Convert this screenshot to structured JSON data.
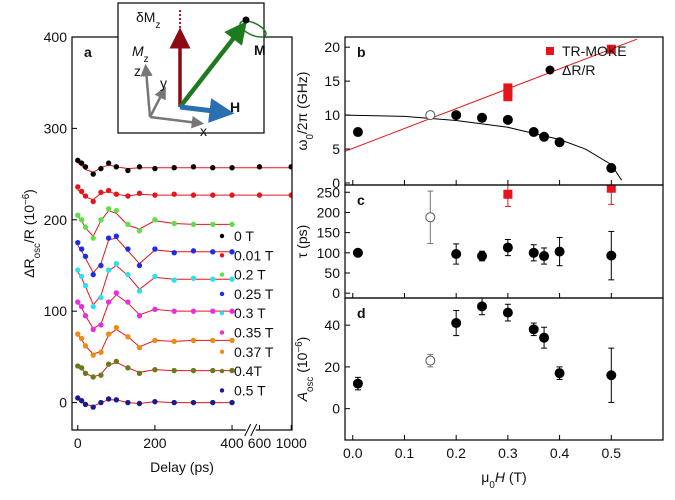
{
  "chart_data": [
    {
      "type": "scatter",
      "panel": "a",
      "xlim": [
        -15,
        1010
      ],
      "xbreak": [
        430,
        580
      ],
      "ylim": [
        -30,
        400
      ],
      "xticks": [
        0,
        200,
        400,
        600,
        1000
      ],
      "yticks": [
        0,
        100,
        200,
        300,
        400
      ],
      "xlabel": [
        {
          "text": "Delay (ps)"
        }
      ],
      "ylabel": [
        {
          "text": "ΔR"
        },
        {
          "text": "osc",
          "shift": "sub"
        },
        {
          "text": "/R (10"
        },
        {
          "text": "−6",
          "shift": "super"
        },
        {
          "text": ")"
        }
      ],
      "legend": "right",
      "fit_color": "#e8141b",
      "x": [
        0,
        10,
        20,
        40,
        60,
        80,
        100,
        130,
        160,
        200,
        250,
        300,
        350,
        400,
        600,
        1000
      ],
      "series": [
        {
          "name": "0 T",
          "color": "#000000",
          "values": [
            265,
            262,
            258,
            250,
            256,
            262,
            258,
            254,
            258,
            256,
            257,
            258,
            257,
            257,
            258,
            258
          ],
          "fit": [
            262,
            259,
            255,
            252,
            257,
            260,
            258,
            256,
            257,
            257,
            257,
            257,
            257,
            257,
            257,
            257
          ]
        },
        {
          "name": "0.01 T",
          "color": "#e8141b",
          "values": [
            236,
            231,
            226,
            220,
            230,
            232,
            228,
            226,
            229,
            227,
            228,
            227,
            227,
            227,
            227,
            227
          ],
          "fit": [
            233,
            229,
            225,
            222,
            229,
            231,
            228,
            226,
            228,
            227,
            227,
            227,
            227,
            227,
            227,
            227
          ]
        },
        {
          "name": "0.2 T",
          "color": "#5ee04a",
          "values": [
            205,
            200,
            192,
            180,
            200,
            212,
            210,
            195,
            188,
            200,
            196,
            195,
            195,
            195,
            null,
            null
          ],
          "fit": [
            204,
            199,
            191,
            182,
            199,
            210,
            207,
            194,
            190,
            199,
            196,
            195,
            195,
            195,
            null,
            null
          ]
        },
        {
          "name": "0.25 T",
          "color": "#1a2ee8",
          "values": [
            175,
            168,
            160,
            140,
            150,
            180,
            182,
            168,
            150,
            168,
            164,
            166,
            165,
            165,
            null,
            null
          ],
          "fit": [
            172,
            166,
            158,
            142,
            152,
            178,
            180,
            166,
            152,
            167,
            165,
            165,
            165,
            165,
            null,
            null
          ]
        },
        {
          "name": "0.3 T",
          "color": "#2ee0e8",
          "values": [
            145,
            138,
            128,
            105,
            115,
            145,
            152,
            140,
            122,
            138,
            134,
            136,
            135,
            135,
            null,
            null
          ],
          "fit": [
            143,
            136,
            127,
            107,
            117,
            144,
            150,
            139,
            124,
            137,
            135,
            135,
            135,
            135,
            null,
            null
          ]
        },
        {
          "name": "0.35 T",
          "color": "#e82ee0",
          "values": [
            110,
            105,
            95,
            80,
            85,
            110,
            120,
            110,
            95,
            102,
            100,
            100,
            100,
            100,
            null,
            null
          ],
          "fit": [
            109,
            104,
            95,
            81,
            86,
            109,
            118,
            109,
            96,
            102,
            100,
            100,
            100,
            100,
            null,
            null
          ]
        },
        {
          "name": "0.37 T",
          "color": "#f08a14",
          "values": [
            75,
            70,
            62,
            52,
            55,
            75,
            82,
            72,
            60,
            68,
            67,
            68,
            68,
            68,
            null,
            null
          ],
          "fit": [
            74,
            69,
            62,
            53,
            56,
            74,
            80,
            72,
            61,
            68,
            67,
            68,
            68,
            68,
            null,
            null
          ]
        },
        {
          "name": "0.4T",
          "color": "#6b7a1a",
          "values": [
            40,
            38,
            32,
            28,
            30,
            42,
            45,
            38,
            32,
            36,
            35,
            35,
            35,
            35,
            null,
            null
          ],
          "fit": [
            40,
            37,
            32,
            28,
            31,
            41,
            44,
            38,
            33,
            36,
            35,
            35,
            35,
            35,
            null,
            null
          ]
        },
        {
          "name": "0.5 T",
          "color": "#1a1a8c",
          "values": [
            5,
            2,
            -2,
            -5,
            0,
            4,
            3,
            0,
            -1,
            1,
            0,
            0,
            0,
            0,
            null,
            null
          ],
          "fit": [
            4,
            2,
            -2,
            -4,
            0,
            3,
            3,
            0,
            -1,
            1,
            0,
            0,
            0,
            0,
            null,
            null
          ]
        }
      ],
      "inset": [
        [
          {
            "text": "δM"
          },
          {
            "text": "z",
            "shift": "sub"
          }
        ],
        [
          {
            "text": "M",
            "style": "italic"
          },
          {
            "text": "z",
            "shift": "sub"
          }
        ],
        [
          {
            "text": "M",
            "weight": "bold"
          }
        ],
        [
          {
            "text": "H",
            "weight": "bold"
          }
        ],
        [
          {
            "text": "z"
          }
        ],
        [
          {
            "text": "y"
          }
        ],
        [
          {
            "text": "x"
          }
        ]
      ]
    },
    {
      "type": "scatter",
      "panel": "b",
      "xlim": [
        -0.015,
        0.6
      ],
      "ylim": [
        -0.3,
        21.5
      ],
      "xticks": [
        {
          "value": 0,
          "label": "0.0"
        },
        0.1,
        0.2,
        0.3,
        0.4,
        0.5
      ],
      "xticklabels": false,
      "yticks": [
        0,
        5,
        10,
        15,
        20
      ],
      "ylabel": [
        {
          "text": "ω"
        },
        {
          "text": "0",
          "shift": "sub"
        },
        {
          "text": "/2π (GHz)"
        }
      ],
      "legend": "upper right",
      "series": [
        {
          "name": "TR-MOKE",
          "color": "#e8141b",
          "marker": "square",
          "x": [
            0.3,
            0.3,
            0.3,
            0.5
          ],
          "values": [
            14,
            13.3,
            12.7,
            19.7
          ]
        },
        {
          "name": "ΔR/R",
          "color": "#000000",
          "marker": "circle",
          "x": [
            0.01,
            0.15,
            0.2,
            0.25,
            0.3,
            0.35,
            0.37,
            0.4,
            0.5
          ],
          "values": [
            7.5,
            10,
            10,
            9.6,
            9.3,
            7.5,
            6.8,
            6,
            2.2
          ],
          "filled": [
            true,
            false,
            true,
            true,
            true,
            true,
            true,
            true,
            true
          ]
        }
      ],
      "fits": [
        {
          "color": "#e8141b",
          "x": [
            -0.015,
            0.55
          ],
          "values": [
            4.66,
            21.2
          ]
        },
        {
          "color": "#000000",
          "x": [
            -0.015,
            0.1,
            0.2,
            0.3,
            0.4,
            0.45,
            0.5,
            0.52
          ],
          "values": [
            10,
            9.8,
            9.2,
            8.2,
            6.4,
            5.0,
            2.7,
            0.4
          ]
        }
      ]
    },
    {
      "type": "scatter",
      "panel": "c",
      "xlim": [
        -0.015,
        0.6
      ],
      "ylim": [
        -12,
        268
      ],
      "xticks": [
        {
          "value": 0,
          "label": "0.0"
        },
        0.1,
        0.2,
        0.3,
        0.4,
        0.5
      ],
      "xticklabels": false,
      "yticks": [
        0,
        50,
        100,
        150,
        200,
        250
      ],
      "ylabel": [
        {
          "text": "τ (ps)"
        }
      ],
      "series": [
        {
          "color": "#e8141b",
          "marker": "square",
          "x": [
            0.3,
            0.5
          ],
          "values": [
            245,
            260
          ],
          "errors": [
            30,
            40
          ]
        },
        {
          "color": "#000000",
          "marker": "circle",
          "x": [
            0.01,
            0.15,
            0.2,
            0.25,
            0.3,
            0.35,
            0.37,
            0.4,
            0.5
          ],
          "values": [
            100,
            188,
            97,
            92,
            113,
            100,
            92,
            103,
            93
          ],
          "errors": [
            5,
            65,
            25,
            12,
            20,
            20,
            20,
            35,
            60
          ],
          "filled": [
            true,
            false,
            true,
            true,
            true,
            true,
            true,
            true,
            true
          ]
        }
      ]
    },
    {
      "type": "scatter",
      "panel": "d",
      "xlim": [
        -0.015,
        0.6
      ],
      "ylim": [
        -15,
        53
      ],
      "xticks": [
        {
          "value": 0,
          "label": "0.0"
        },
        0.1,
        0.2,
        0.3,
        0.4,
        0.5
      ],
      "yticks": [
        0,
        20,
        40
      ],
      "xlabel": [
        {
          "text": "μ"
        },
        {
          "text": "0",
          "shift": "sub"
        },
        {
          "text": "H",
          "style": "italic"
        },
        {
          "text": " (T)"
        }
      ],
      "ylabel": [
        {
          "text": "A",
          "style": "italic"
        },
        {
          "text": "osc",
          "shift": "sub"
        },
        {
          "text": " (10"
        },
        {
          "text": "−6",
          "shift": "super"
        },
        {
          "text": ")"
        }
      ],
      "series": [
        {
          "color": "#000000",
          "marker": "circle",
          "x": [
            0.01,
            0.15,
            0.2,
            0.25,
            0.3,
            0.35,
            0.37,
            0.4,
            0.5
          ],
          "values": [
            12,
            23,
            41,
            49,
            46,
            38,
            34,
            17,
            16
          ],
          "errors": [
            3,
            3,
            6,
            4,
            4,
            3,
            5,
            3,
            13
          ],
          "filled": [
            true,
            false,
            true,
            true,
            true,
            true,
            true,
            true,
            true
          ]
        }
      ]
    }
  ]
}
